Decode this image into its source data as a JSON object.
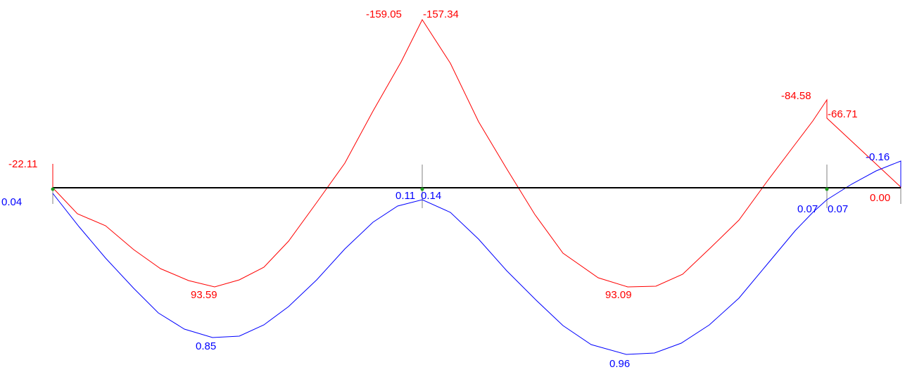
{
  "colors": {
    "beam": "#000000",
    "support": "#808080",
    "support_node": "#1f9e1f",
    "moment": "#ff0000",
    "deflection": "#0000ff",
    "background": "#ffffff"
  },
  "moment_labels": {
    "left_end": "-22.11",
    "span1_max": "93.59",
    "support1_left": "-159.05",
    "support1_right": "-157.34",
    "span2_max": "93.09",
    "support2_left": "-84.58",
    "support2_right": "-66.71",
    "right_end": "0.00"
  },
  "deflection_labels": {
    "left_end": "0.04",
    "span1_max": "0.85",
    "support1_left": "0.11",
    "support1_right": "0.14",
    "span2_max": "0.96",
    "support2_left": "0.07",
    "support2_right": "0.07",
    "right_end": "-0.16"
  }
}
